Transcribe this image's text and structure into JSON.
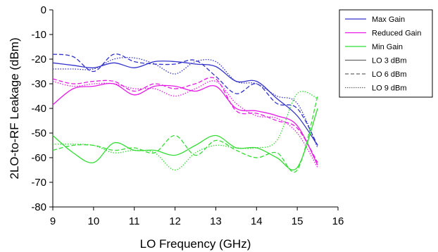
{
  "chart_data": {
    "type": "line",
    "xlabel": "LO Frequency (GHz)",
    "ylabel": "2LO-to-RF Leakage (dBm)",
    "xlim": [
      9,
      16
    ],
    "ylim": [
      -80,
      0
    ],
    "xticks": [
      9,
      10,
      11,
      12,
      13,
      14,
      15,
      16
    ],
    "yticks": [
      0,
      -10,
      -20,
      -30,
      -40,
      -50,
      -60,
      -70,
      -80
    ],
    "grid": false,
    "legend_position": "top-right",
    "legend": [
      {
        "label": "Max Gain",
        "kind": "color",
        "color": "#3333cc"
      },
      {
        "label": "Reduced Gain",
        "kind": "color",
        "color": "#e619e6"
      },
      {
        "label": "Min Gain",
        "kind": "color",
        "color": "#33dd33"
      },
      {
        "label": "LO 3 dBm",
        "kind": "style",
        "dash": "solid"
      },
      {
        "label": "LO 6 dBm",
        "kind": "style",
        "dash": "dashed"
      },
      {
        "label": "LO 9 dBm",
        "kind": "style",
        "dash": "dotted"
      }
    ],
    "series": [
      {
        "color": "#3333cc",
        "dash": "solid",
        "x": [
          9,
          9.5,
          10,
          10.5,
          11,
          11.5,
          12,
          12.5,
          13,
          13.5,
          14,
          14.5,
          15,
          15.5
        ],
        "y": [
          -21.5,
          -22.5,
          -23.5,
          -21.5,
          -23.5,
          -21,
          -21,
          -22,
          -23,
          -29,
          -29,
          -36,
          -43,
          -55
        ]
      },
      {
        "color": "#3333cc",
        "dash": "dashed",
        "x": [
          9,
          9.5,
          10,
          10.5,
          11,
          11.5,
          12,
          12.5,
          13,
          13.5,
          14,
          14.5,
          15,
          15.5
        ],
        "y": [
          -18,
          -19,
          -25,
          -18,
          -21,
          -22,
          -22,
          -20.5,
          -27,
          -34,
          -30,
          -38,
          -40,
          -55
        ]
      },
      {
        "color": "#3333cc",
        "dash": "dotted",
        "x": [
          9,
          9.5,
          10,
          10.5,
          11,
          11.5,
          12,
          12.5,
          13,
          13.5,
          14,
          14.5,
          15,
          15.5
        ],
        "y": [
          -24,
          -24,
          -24,
          -20,
          -19.5,
          -22,
          -26,
          -21,
          -21,
          -29,
          -30,
          -35,
          -38,
          -56
        ]
      },
      {
        "color": "#e619e6",
        "dash": "solid",
        "x": [
          9,
          9.5,
          10,
          10.5,
          11,
          11.5,
          12,
          12.5,
          13,
          13.5,
          14,
          14.5,
          15,
          15.5
        ],
        "y": [
          -38.5,
          -32,
          -31,
          -30,
          -34.5,
          -31,
          -31,
          -33,
          -31,
          -40,
          -41,
          -43,
          -47,
          -63
        ]
      },
      {
        "color": "#e619e6",
        "dash": "dashed",
        "x": [
          9,
          9.5,
          10,
          10.5,
          11,
          11.5,
          12,
          12.5,
          13,
          13.5,
          14,
          14.5,
          15,
          15.5
        ],
        "y": [
          -28,
          -30,
          -29,
          -29,
          -33,
          -30,
          -32,
          -30,
          -28,
          -41,
          -42,
          -45,
          -48,
          -62
        ]
      },
      {
        "color": "#e619e6",
        "dash": "dotted",
        "x": [
          9,
          9.5,
          10,
          10.5,
          11,
          11.5,
          12,
          12.5,
          13,
          13.5,
          14,
          14.5,
          15,
          15.5
        ],
        "y": [
          -29,
          -31,
          -30,
          -30,
          -32,
          -32,
          -35,
          -32,
          -29,
          -38,
          -43,
          -44,
          -50,
          -64
        ]
      },
      {
        "color": "#33dd33",
        "dash": "solid",
        "x": [
          9,
          9.5,
          10,
          10.5,
          11,
          11.5,
          12,
          12.5,
          13,
          13.5,
          14,
          14.5,
          15,
          15.5
        ],
        "y": [
          -51,
          -58,
          -62,
          -54,
          -57,
          -57,
          -59,
          -55,
          -51,
          -56,
          -56,
          -60,
          -64,
          -40
        ]
      },
      {
        "color": "#33dd33",
        "dash": "dashed",
        "x": [
          9,
          9.5,
          10,
          10.5,
          11,
          11.5,
          12,
          12.5,
          13,
          13.5,
          14,
          14.5,
          15,
          15.5
        ],
        "y": [
          -57,
          -55,
          -55,
          -57,
          -56,
          -58,
          -51,
          -59,
          -53,
          -57,
          -60,
          -58,
          -65,
          -35
        ]
      },
      {
        "color": "#33dd33",
        "dash": "dotted",
        "x": [
          9,
          9.5,
          10,
          10.5,
          11,
          11.5,
          12,
          12.5,
          13,
          13.5,
          14,
          14.5,
          15,
          15.5
        ],
        "y": [
          -54.5,
          -54.5,
          -55,
          -58,
          -57,
          -58,
          -65,
          -58,
          -55,
          -56,
          -56,
          -53,
          -34,
          -36
        ]
      }
    ]
  }
}
